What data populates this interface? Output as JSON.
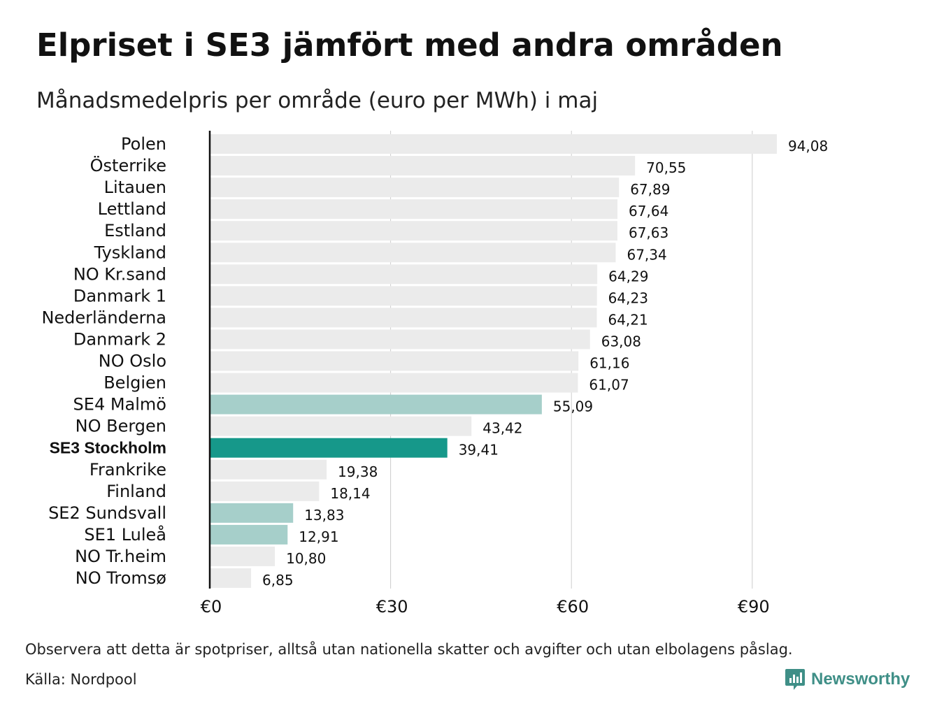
{
  "header": {
    "title": "Elpriset i SE3 jämfört med andra områden",
    "subtitle": "Månadsmedelpris per område (euro per MWh) i maj"
  },
  "footer": {
    "note": "Observera att detta är spotpriser, alltså utan nationella skatter och avgifter och utan elbolagens påslag.",
    "source": "Källa: Nordpool",
    "brand": "Newsworthy",
    "brand_icon": "newsworthy-logo-icon"
  },
  "colors": {
    "default": "#ebebeb",
    "other_se": "#a6cfca",
    "highlight": "#16988a",
    "brand": "#3f8f87"
  },
  "chart_data": {
    "type": "bar",
    "orientation": "horizontal",
    "xlim": [
      0,
      100
    ],
    "xticks": [
      0,
      30,
      60,
      90
    ],
    "xtick_labels": [
      "€0",
      "€30",
      "€60",
      "€90"
    ],
    "grid": true,
    "categories": [
      "Polen",
      "Österrike",
      "Litauen",
      "Lettland",
      "Estland",
      "Tyskland",
      "NO Kr.sand",
      "Danmark  1",
      "Nederländerna",
      "Danmark  2",
      "NO Oslo",
      "Belgien",
      "SE4  Malmö",
      "NO Bergen",
      "SE3 Stockholm",
      "Frankrike",
      "Finland",
      "SE2  Sundsvall",
      "SE1  Luleå",
      "NO Tr.heim",
      "NO Tromsø"
    ],
    "values": [
      94.08,
      70.55,
      67.89,
      67.64,
      67.63,
      67.34,
      64.29,
      64.23,
      64.21,
      63.08,
      61.16,
      61.07,
      55.09,
      43.42,
      39.41,
      19.38,
      18.14,
      13.83,
      12.91,
      10.8,
      6.85
    ],
    "value_labels": [
      "94,08",
      "70,55",
      "67,89",
      "67,64",
      "67,63",
      "67,34",
      "64,29",
      "64,23",
      "64,21",
      "63,08",
      "61,16",
      "61,07",
      "55,09",
      "43,42",
      "39,41",
      "19,38",
      "18,14",
      "13,83",
      "12,91",
      "10,80",
      "6,85"
    ],
    "groups": [
      "default",
      "default",
      "default",
      "default",
      "default",
      "default",
      "default",
      "default",
      "default",
      "default",
      "default",
      "default",
      "other_se",
      "default",
      "highlight",
      "default",
      "default",
      "other_se",
      "other_se",
      "default",
      "default"
    ],
    "highlighted": "SE3 Stockholm"
  }
}
